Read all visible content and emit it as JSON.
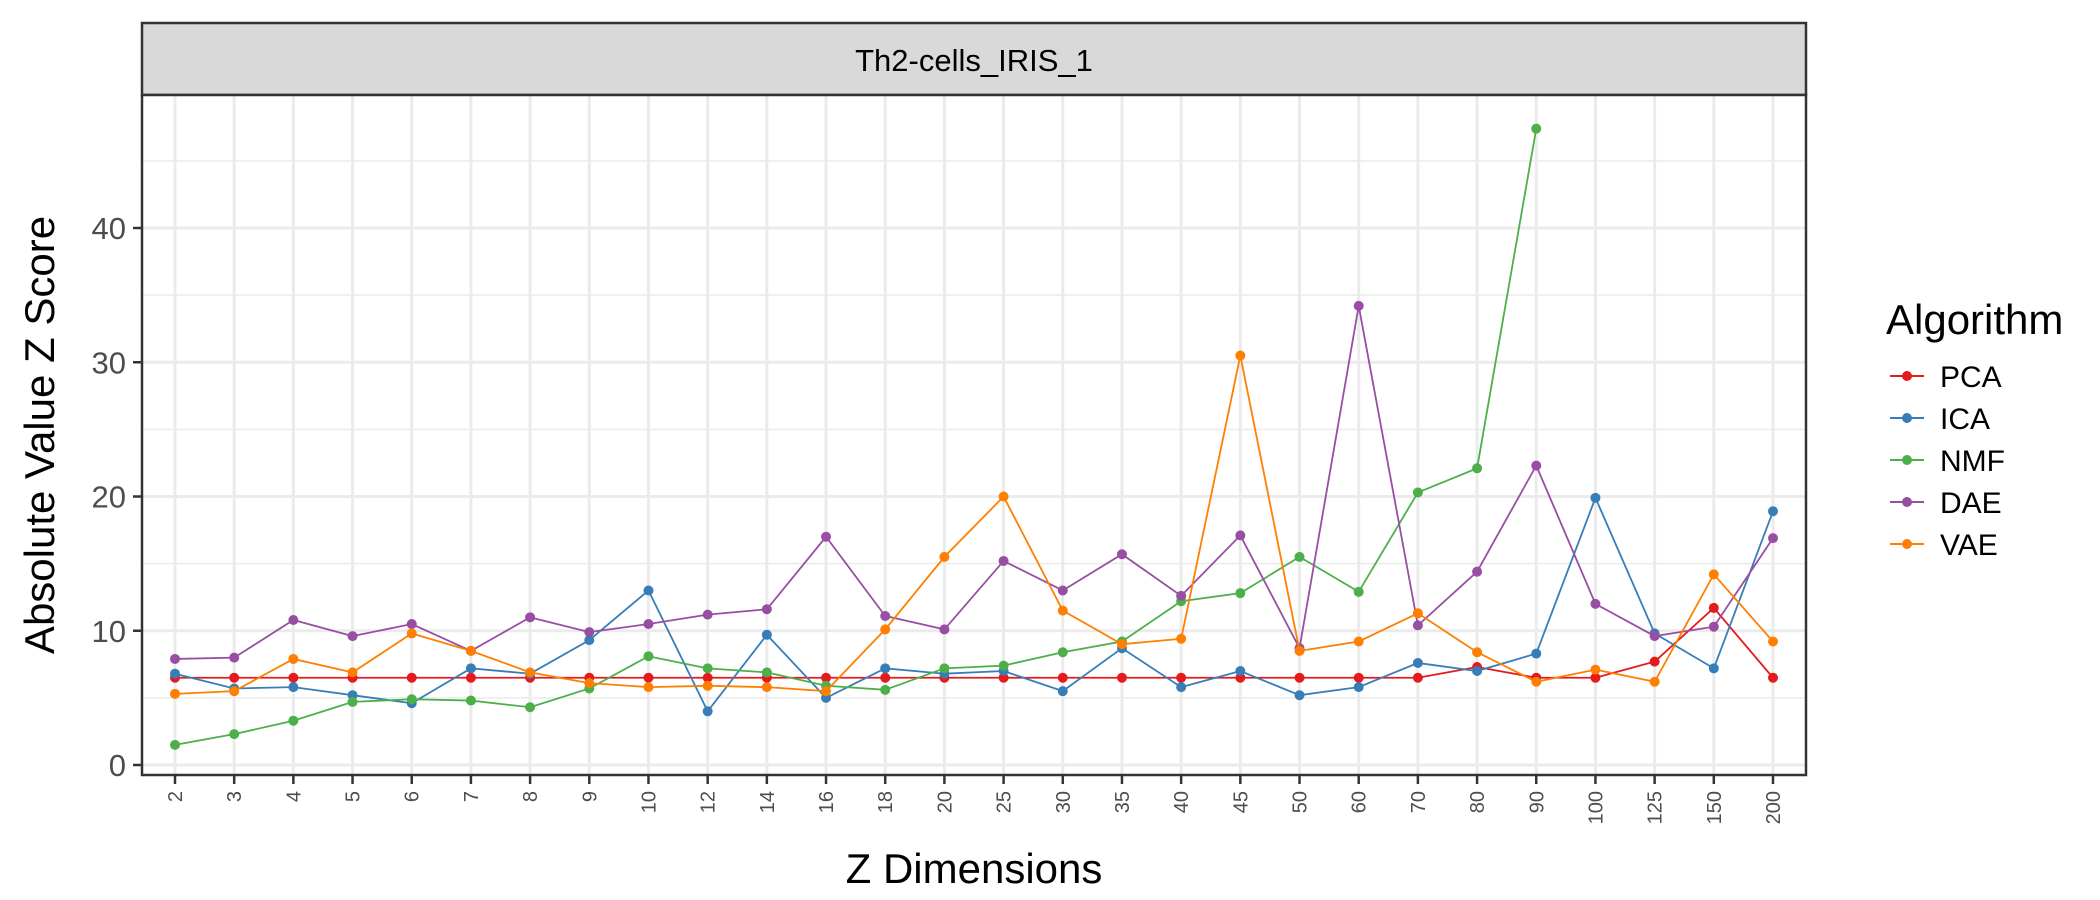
{
  "chart_data": {
    "type": "line",
    "facet_title": "Th2-cells_IRIS_1",
    "xlabel": "Z Dimensions",
    "ylabel": "Absolute Value Z Score",
    "ylim": [
      0,
      50
    ],
    "yticks": [
      0,
      10,
      20,
      30,
      40
    ],
    "categories": [
      "2",
      "3",
      "4",
      "5",
      "6",
      "7",
      "8",
      "9",
      "10",
      "12",
      "14",
      "16",
      "18",
      "20",
      "25",
      "30",
      "35",
      "40",
      "45",
      "50",
      "60",
      "70",
      "80",
      "90",
      "100",
      "125",
      "150",
      "200"
    ],
    "grid": true,
    "legend": {
      "title": "Algorithm",
      "position": "right"
    },
    "series": [
      {
        "name": "PCA",
        "color": "#E41A1C",
        "values": [
          6.5,
          6.5,
          6.5,
          6.5,
          6.5,
          6.5,
          6.5,
          6.5,
          6.5,
          6.5,
          6.5,
          6.5,
          6.5,
          6.5,
          6.5,
          6.5,
          6.5,
          6.5,
          6.5,
          6.5,
          6.5,
          6.5,
          7.3,
          6.5,
          6.5,
          7.7,
          11.7,
          6.5
        ]
      },
      {
        "name": "ICA",
        "color": "#377EB8",
        "values": [
          6.8,
          5.7,
          5.8,
          5.2,
          4.6,
          7.2,
          6.8,
          9.3,
          13.0,
          4.0,
          9.7,
          5.0,
          7.2,
          6.8,
          7.0,
          5.5,
          8.7,
          5.8,
          7.0,
          5.2,
          5.8,
          7.6,
          7.0,
          8.3,
          19.9,
          9.8,
          7.2,
          18.9
        ]
      },
      {
        "name": "NMF",
        "color": "#4DAF4A",
        "values": [
          1.5,
          2.3,
          3.3,
          4.7,
          4.9,
          4.8,
          4.3,
          5.7,
          8.1,
          7.2,
          6.9,
          5.9,
          5.6,
          7.2,
          7.4,
          8.4,
          9.2,
          12.2,
          12.8,
          15.5,
          12.9,
          20.3,
          22.1,
          47.4,
          null,
          null,
          null,
          null
        ]
      },
      {
        "name": "DAE",
        "color": "#984EA3",
        "values": [
          7.9,
          8.0,
          10.8,
          9.6,
          10.5,
          8.5,
          11.0,
          9.9,
          10.5,
          11.2,
          11.6,
          17.0,
          11.1,
          10.1,
          15.2,
          13.0,
          15.7,
          12.6,
          17.1,
          8.7,
          34.2,
          10.4,
          14.4,
          22.3,
          12.0,
          9.6,
          10.3,
          16.9
        ]
      },
      {
        "name": "VAE",
        "color": "#FF7F00",
        "values": [
          5.3,
          5.5,
          7.9,
          6.9,
          9.8,
          8.5,
          6.9,
          6.1,
          5.8,
          5.9,
          5.8,
          5.5,
          10.1,
          15.5,
          20.0,
          11.5,
          9.0,
          9.4,
          30.5,
          8.5,
          9.2,
          11.3,
          8.4,
          6.2,
          7.1,
          6.2,
          14.2,
          9.2
        ]
      }
    ]
  }
}
